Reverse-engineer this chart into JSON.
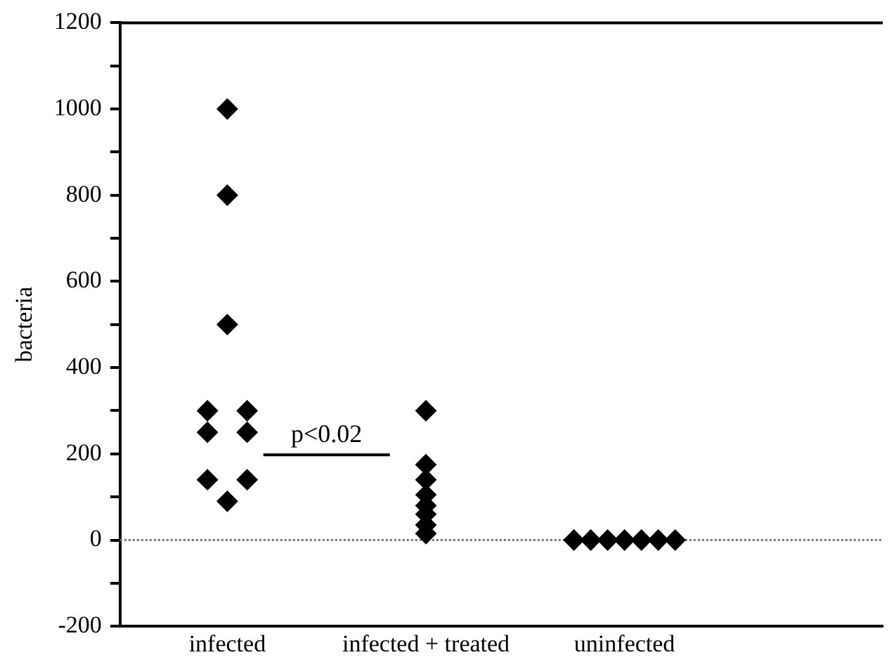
{
  "chart_data": {
    "type": "scatter",
    "ylabel": "bacteria",
    "categories": [
      "infected",
      "infected + treated",
      "uninfected"
    ],
    "series": [
      {
        "color": "#000000",
        "x": [
          "infected",
          "infected",
          "infected",
          "infected",
          "infected",
          "infected",
          "infected",
          "infected",
          "infected",
          "infected",
          "infected + treated",
          "infected + treated",
          "infected + treated",
          "infected + treated",
          "infected + treated",
          "infected + treated",
          "infected + treated",
          "infected + treated",
          "uninfected",
          "uninfected",
          "uninfected",
          "uninfected",
          "uninfected",
          "uninfected",
          "uninfected"
        ],
        "values": [
          1000,
          800,
          500,
          300,
          300,
          250,
          250,
          140,
          140,
          90,
          300,
          175,
          140,
          105,
          80,
          60,
          35,
          15,
          0,
          0,
          0,
          0,
          0,
          0,
          0
        ]
      }
    ],
    "marker": "diamond",
    "ylim": [
      -200,
      1200
    ],
    "yticks": [
      -200,
      {
        "value": -100,
        "label": null
      },
      0,
      {
        "value": 100,
        "label": null
      },
      200,
      {
        "value": 300,
        "label": null
      },
      400,
      {
        "value": 500,
        "label": null
      },
      600,
      {
        "value": 700,
        "label": null
      },
      800,
      {
        "value": 900,
        "label": null
      },
      1000,
      {
        "value": 1100,
        "label": null
      },
      1200
    ],
    "ref_lines": [
      {
        "axis": "y",
        "value": 0,
        "color": "#777777",
        "line_style": "dotted"
      }
    ],
    "annotations": [
      "p<0.02"
    ],
    "grid": false,
    "legend": false
  }
}
